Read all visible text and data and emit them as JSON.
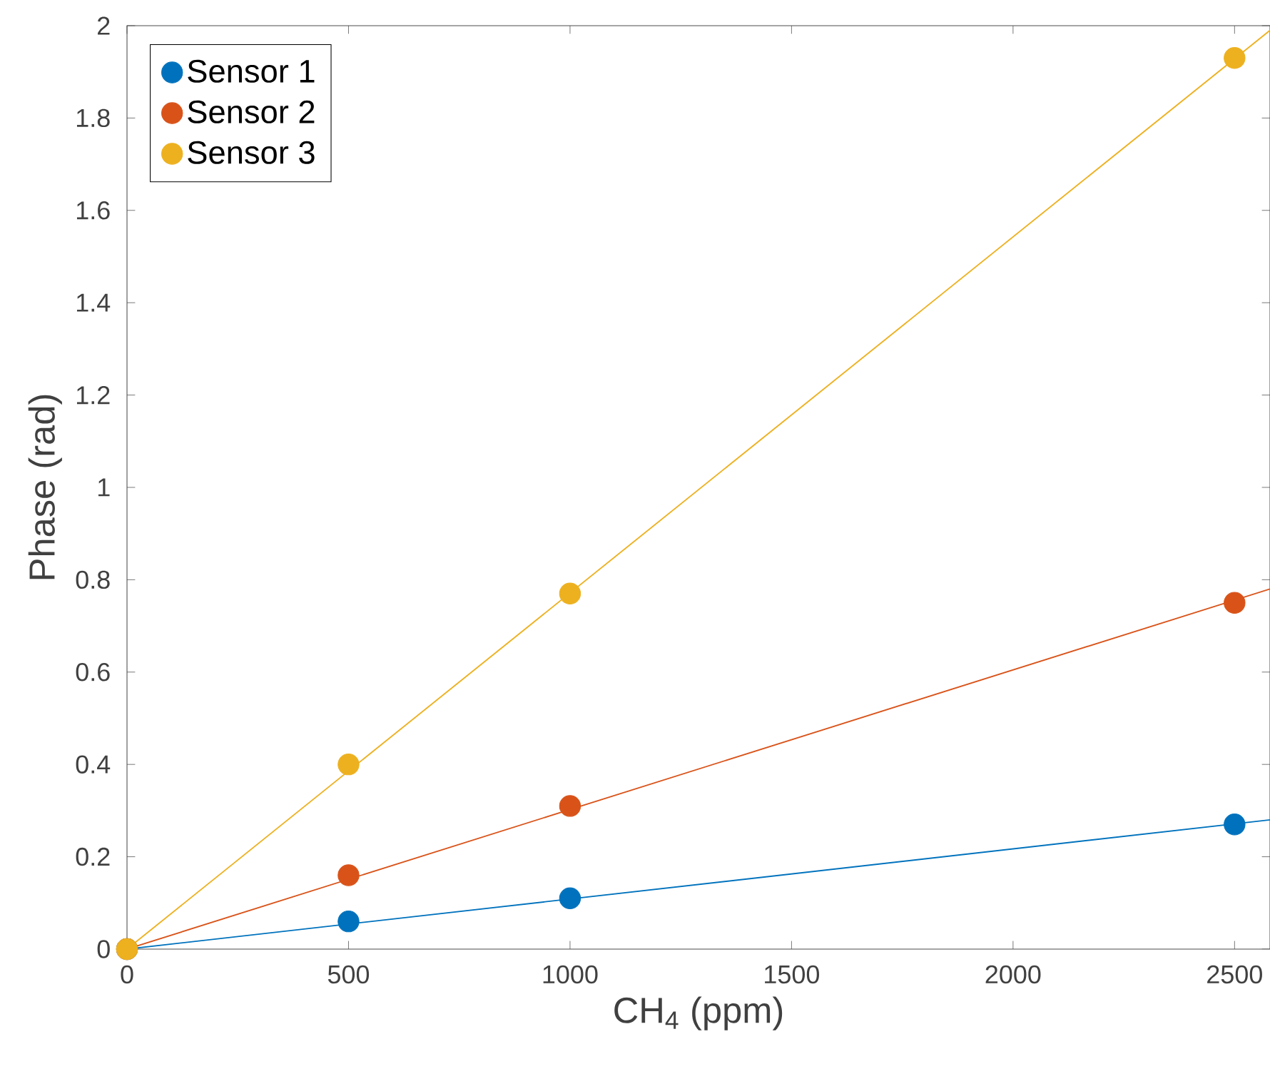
{
  "chart_data": {
    "type": "scatter",
    "xlabel": "CH$_{4}$ (ppm)",
    "ylabel": "Phase (rad)",
    "xlim": [
      0,
      2580
    ],
    "ylim": [
      0,
      2
    ],
    "xticks": [
      0,
      500,
      1000,
      1500,
      2000,
      2500
    ],
    "yticks": [
      0,
      0.2,
      0.4,
      0.6,
      0.8,
      1,
      1.2,
      1.4,
      1.6,
      1.8,
      2
    ],
    "legend": "top left",
    "series": [
      {
        "name": "Sensor 1",
        "color": "#0072bd",
        "marker": "circle",
        "x": [
          0,
          500,
          1000,
          2500
        ],
        "values": [
          0,
          0.06,
          0.11,
          0.27
        ]
      },
      {
        "name": "Sensor 2",
        "color": "#d95319",
        "marker": "circle",
        "x": [
          0,
          500,
          1000,
          2500
        ],
        "values": [
          0,
          0.16,
          0.31,
          0.75
        ]
      },
      {
        "name": "Sensor 3",
        "color": "#edb120",
        "marker": "circle",
        "x": [
          0,
          500,
          1000,
          2500
        ],
        "values": [
          0,
          0.4,
          0.77,
          1.93
        ]
      },
      {
        "type": "line",
        "color": "#0072bd",
        "x": [
          0,
          2580
        ],
        "values": [
          0,
          0.28
        ]
      },
      {
        "type": "line",
        "color": "#d95319",
        "x": [
          0,
          2580
        ],
        "values": [
          0,
          0.78
        ]
      },
      {
        "type": "line",
        "color": "#edb120",
        "x": [
          0,
          2580
        ],
        "values": [
          0,
          1.99
        ]
      }
    ]
  }
}
